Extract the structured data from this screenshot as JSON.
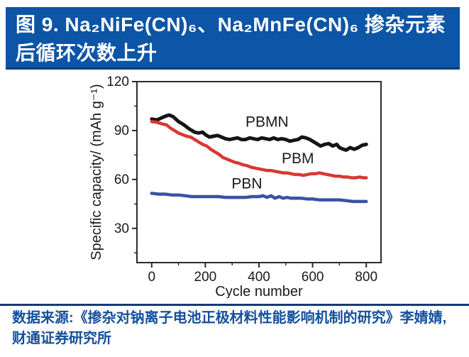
{
  "header": {
    "line1": "图 9. Na₂NiFe(CN)₆、Na₂MnFe(CN)₆ 掺杂元素",
    "line2": "后循环次数上升"
  },
  "footer": {
    "source_line1": "数据来源:《掺杂对钠离子电池正极材料性能影响机制的研究》李婧婧,",
    "source_line2": "财通证券研究所"
  },
  "colors": {
    "title_bar_bg": "#0d55a6",
    "title_bar_border": "#0c3d7c",
    "footer_text": "#14509c",
    "footer_rule": "#173a75",
    "axis": "#2b2b2b",
    "tick_label": "#1a1a1a",
    "series_pbmn": "#151515",
    "series_pbm": "#d93832",
    "series_pbn": "#3b51a3"
  },
  "chart_data": {
    "type": "line",
    "title": "",
    "xlabel": "Cycle number",
    "ylabel": "Specific capacity/ (mAh g⁻¹)",
    "xlim": [
      -55,
      855
    ],
    "ylim": [
      9,
      120
    ],
    "xticks": [
      0,
      200,
      400,
      600,
      800
    ],
    "xticks_minor": [
      100,
      300,
      500,
      700
    ],
    "yticks": [
      120,
      90,
      60,
      30
    ],
    "yticks_minor": [
      105,
      75,
      45,
      15
    ],
    "grid": false,
    "legend": "inline-labels",
    "series": [
      {
        "name": "PBMN",
        "color": "#151515",
        "width": 5,
        "points": [
          [
            0,
            97
          ],
          [
            20,
            96.5
          ],
          [
            40,
            98
          ],
          [
            55,
            99
          ],
          [
            65,
            99.5
          ],
          [
            80,
            98.5
          ],
          [
            100,
            95.5
          ],
          [
            120,
            93.5
          ],
          [
            140,
            91
          ],
          [
            160,
            89
          ],
          [
            175,
            88.5
          ],
          [
            190,
            89
          ],
          [
            200,
            87.5
          ],
          [
            215,
            86
          ],
          [
            230,
            86.5
          ],
          [
            245,
            87
          ],
          [
            260,
            86
          ],
          [
            275,
            85
          ],
          [
            290,
            84.5
          ],
          [
            305,
            85
          ],
          [
            320,
            85.5
          ],
          [
            335,
            84.5
          ],
          [
            350,
            84.5
          ],
          [
            365,
            85.5
          ],
          [
            380,
            85
          ],
          [
            395,
            84.5
          ],
          [
            410,
            85.5
          ],
          [
            425,
            85
          ],
          [
            440,
            84.5
          ],
          [
            455,
            85.5
          ],
          [
            470,
            84.5
          ],
          [
            485,
            85
          ],
          [
            500,
            84.5
          ],
          [
            515,
            83.5
          ],
          [
            530,
            84
          ],
          [
            545,
            84.5
          ],
          [
            560,
            86
          ],
          [
            575,
            85.5
          ],
          [
            590,
            84.5
          ],
          [
            600,
            83.5
          ],
          [
            615,
            82
          ],
          [
            630,
            80.5
          ],
          [
            645,
            81.5
          ],
          [
            660,
            82
          ],
          [
            675,
            80.5
          ],
          [
            690,
            81.5
          ],
          [
            700,
            79.5
          ],
          [
            715,
            78.5
          ],
          [
            725,
            78
          ],
          [
            740,
            79.5
          ],
          [
            755,
            78.5
          ],
          [
            770,
            79.5
          ],
          [
            785,
            81
          ],
          [
            800,
            81.5
          ]
        ]
      },
      {
        "name": "PBM",
        "color": "#d93832",
        "width": 4.5,
        "points": [
          [
            0,
            95.5
          ],
          [
            20,
            95
          ],
          [
            40,
            94
          ],
          [
            55,
            93.5
          ],
          [
            70,
            91.5
          ],
          [
            85,
            90
          ],
          [
            100,
            88.5
          ],
          [
            115,
            87.5
          ],
          [
            130,
            86.5
          ],
          [
            145,
            86
          ],
          [
            160,
            84.5
          ],
          [
            175,
            83
          ],
          [
            190,
            81.5
          ],
          [
            205,
            80.5
          ],
          [
            220,
            78.5
          ],
          [
            235,
            77
          ],
          [
            250,
            75.5
          ],
          [
            265,
            73.5
          ],
          [
            280,
            72.5
          ],
          [
            295,
            71.5
          ],
          [
            310,
            70.5
          ],
          [
            325,
            70
          ],
          [
            340,
            69
          ],
          [
            355,
            68.5
          ],
          [
            370,
            67.5
          ],
          [
            385,
            67
          ],
          [
            400,
            66.5
          ],
          [
            415,
            66
          ],
          [
            430,
            65.5
          ],
          [
            445,
            65.5
          ],
          [
            460,
            65
          ],
          [
            475,
            64.5
          ],
          [
            490,
            64
          ],
          [
            505,
            64
          ],
          [
            520,
            63.5
          ],
          [
            535,
            63
          ],
          [
            550,
            63
          ],
          [
            565,
            62.5
          ],
          [
            580,
            63
          ],
          [
            595,
            63.5
          ],
          [
            610,
            63.5
          ],
          [
            625,
            64
          ],
          [
            640,
            63.5
          ],
          [
            655,
            63
          ],
          [
            670,
            62.5
          ],
          [
            685,
            62
          ],
          [
            700,
            62
          ],
          [
            715,
            61.5
          ],
          [
            730,
            61.5
          ],
          [
            745,
            61
          ],
          [
            760,
            61
          ],
          [
            775,
            61.5
          ],
          [
            790,
            61
          ],
          [
            800,
            61
          ]
        ]
      },
      {
        "name": "PBN",
        "color": "#3b51a3",
        "width": 4.5,
        "points": [
          [
            0,
            51.5
          ],
          [
            25,
            51
          ],
          [
            50,
            51
          ],
          [
            75,
            50.5
          ],
          [
            100,
            50.5
          ],
          [
            125,
            50
          ],
          [
            150,
            49.5
          ],
          [
            175,
            49.5
          ],
          [
            200,
            49.5
          ],
          [
            225,
            49.5
          ],
          [
            250,
            49.5
          ],
          [
            275,
            49
          ],
          [
            300,
            49
          ],
          [
            325,
            49
          ],
          [
            350,
            49
          ],
          [
            375,
            49.5
          ],
          [
            400,
            49.5
          ],
          [
            415,
            50
          ],
          [
            430,
            49
          ],
          [
            445,
            50
          ],
          [
            460,
            48.5
          ],
          [
            475,
            49.5
          ],
          [
            490,
            48.5
          ],
          [
            505,
            49
          ],
          [
            520,
            48.5
          ],
          [
            540,
            48.5
          ],
          [
            560,
            48.5
          ],
          [
            580,
            48
          ],
          [
            600,
            48
          ],
          [
            625,
            47.5
          ],
          [
            650,
            47.5
          ],
          [
            675,
            47.5
          ],
          [
            700,
            47.5
          ],
          [
            725,
            47
          ],
          [
            750,
            46.5
          ],
          [
            775,
            46.5
          ],
          [
            800,
            46.5
          ]
        ]
      }
    ],
    "annotations": [
      {
        "text": "PBMN",
        "x": 430,
        "y": 95.5
      },
      {
        "text": "PBM",
        "x": 545,
        "y": 73
      },
      {
        "text": "PBN",
        "x": 355,
        "y": 57.5
      }
    ]
  }
}
